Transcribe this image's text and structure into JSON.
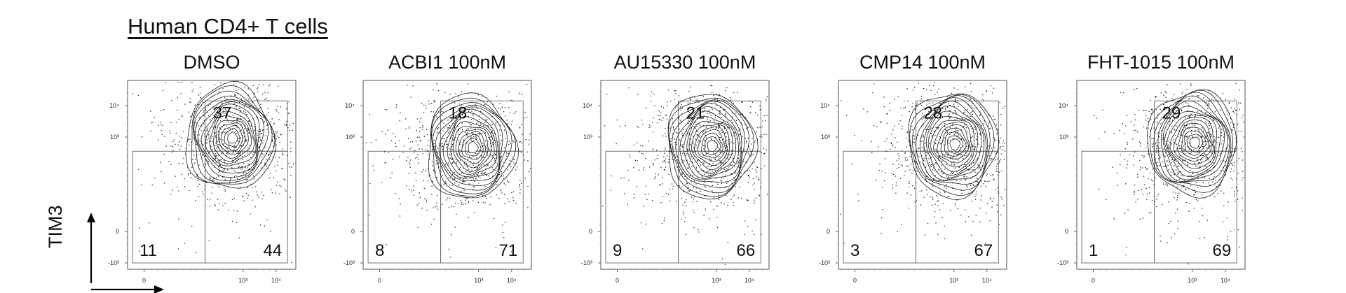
{
  "figure": {
    "title": "Human CD4+ T cells",
    "ylabel": "TIM3",
    "xlabel": ""
  },
  "chart_data": {
    "type": "scatter",
    "subtype": "flow-cytometry-contour-with-quadrant-gates",
    "title": "Human CD4+ T cells",
    "ylabel": "TIM3",
    "xlabel": "",
    "x_ticks": [
      "0",
      "10³",
      "10⁴"
    ],
    "y_ticks": [
      "10⁴",
      "10³",
      "0",
      "-10³"
    ],
    "quadrant_positions": [
      "upper-right",
      "lower-left",
      "lower-right"
    ],
    "panels": [
      {
        "name": "DMSO",
        "quadrants": {
          "upper_right": "37",
          "lower_left": "11",
          "lower_right": "44"
        },
        "center": [
          2.6,
          2.9
        ]
      },
      {
        "name": "ACBI1 100nM",
        "quadrants": {
          "upper_right": "18",
          "lower_left": "8",
          "lower_right": "71"
        },
        "center": [
          2.75,
          2.6
        ]
      },
      {
        "name": "AU15330 100nM",
        "quadrants": {
          "upper_right": "21",
          "lower_left": "9",
          "lower_right": "66"
        },
        "center": [
          2.8,
          2.65
        ]
      },
      {
        "name": "CMP14 100nM",
        "quadrants": {
          "upper_right": "28",
          "lower_left": "3",
          "lower_right": "67"
        },
        "center": [
          2.95,
          2.7
        ]
      },
      {
        "name": "FHT-1015 100nM",
        "quadrants": {
          "upper_right": "29",
          "lower_left": "1",
          "lower_right": "69"
        },
        "center": [
          3.0,
          2.75
        ]
      }
    ],
    "axis_ranges": {
      "x": [
        -0.5,
        4.6
      ],
      "y": [
        -1.2,
        4.8
      ]
    },
    "grid": false,
    "legend": "none"
  }
}
